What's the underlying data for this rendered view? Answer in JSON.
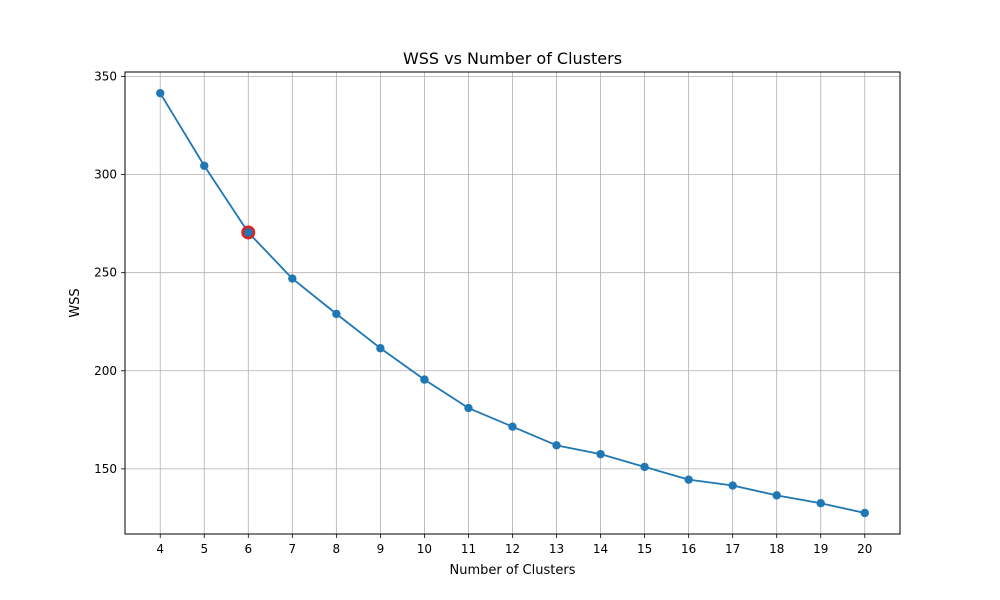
{
  "chart_data": {
    "type": "line",
    "title": "WSS vs Number of Clusters",
    "xlabel": "Number of Clusters",
    "ylabel": "WSS",
    "x": [
      4,
      5,
      6,
      7,
      8,
      9,
      10,
      11,
      12,
      13,
      14,
      15,
      16,
      17,
      18,
      19,
      20
    ],
    "series": [
      {
        "values": [
          341.5,
          304.5,
          270.5,
          247.0,
          229.0,
          211.5,
          195.5,
          181.0,
          171.5,
          162.0,
          157.5,
          151.0,
          144.5,
          141.5,
          136.5,
          132.5,
          127.5
        ],
        "color": "#1f77b4",
        "marker": "circle"
      }
    ],
    "highlight": {
      "x": 6,
      "y": 270.5,
      "color": "#d62728"
    },
    "xticks": [
      "4",
      "5",
      "6",
      "7",
      "8",
      "9",
      "10",
      "11",
      "12",
      "13",
      "14",
      "15",
      "16",
      "17",
      "18",
      "19",
      "20"
    ],
    "yticks": [
      "150",
      "200",
      "250",
      "300",
      "350"
    ],
    "xlim": [
      3.2,
      20.8
    ],
    "ylim": [
      116.8,
      352.3
    ],
    "grid": true
  }
}
